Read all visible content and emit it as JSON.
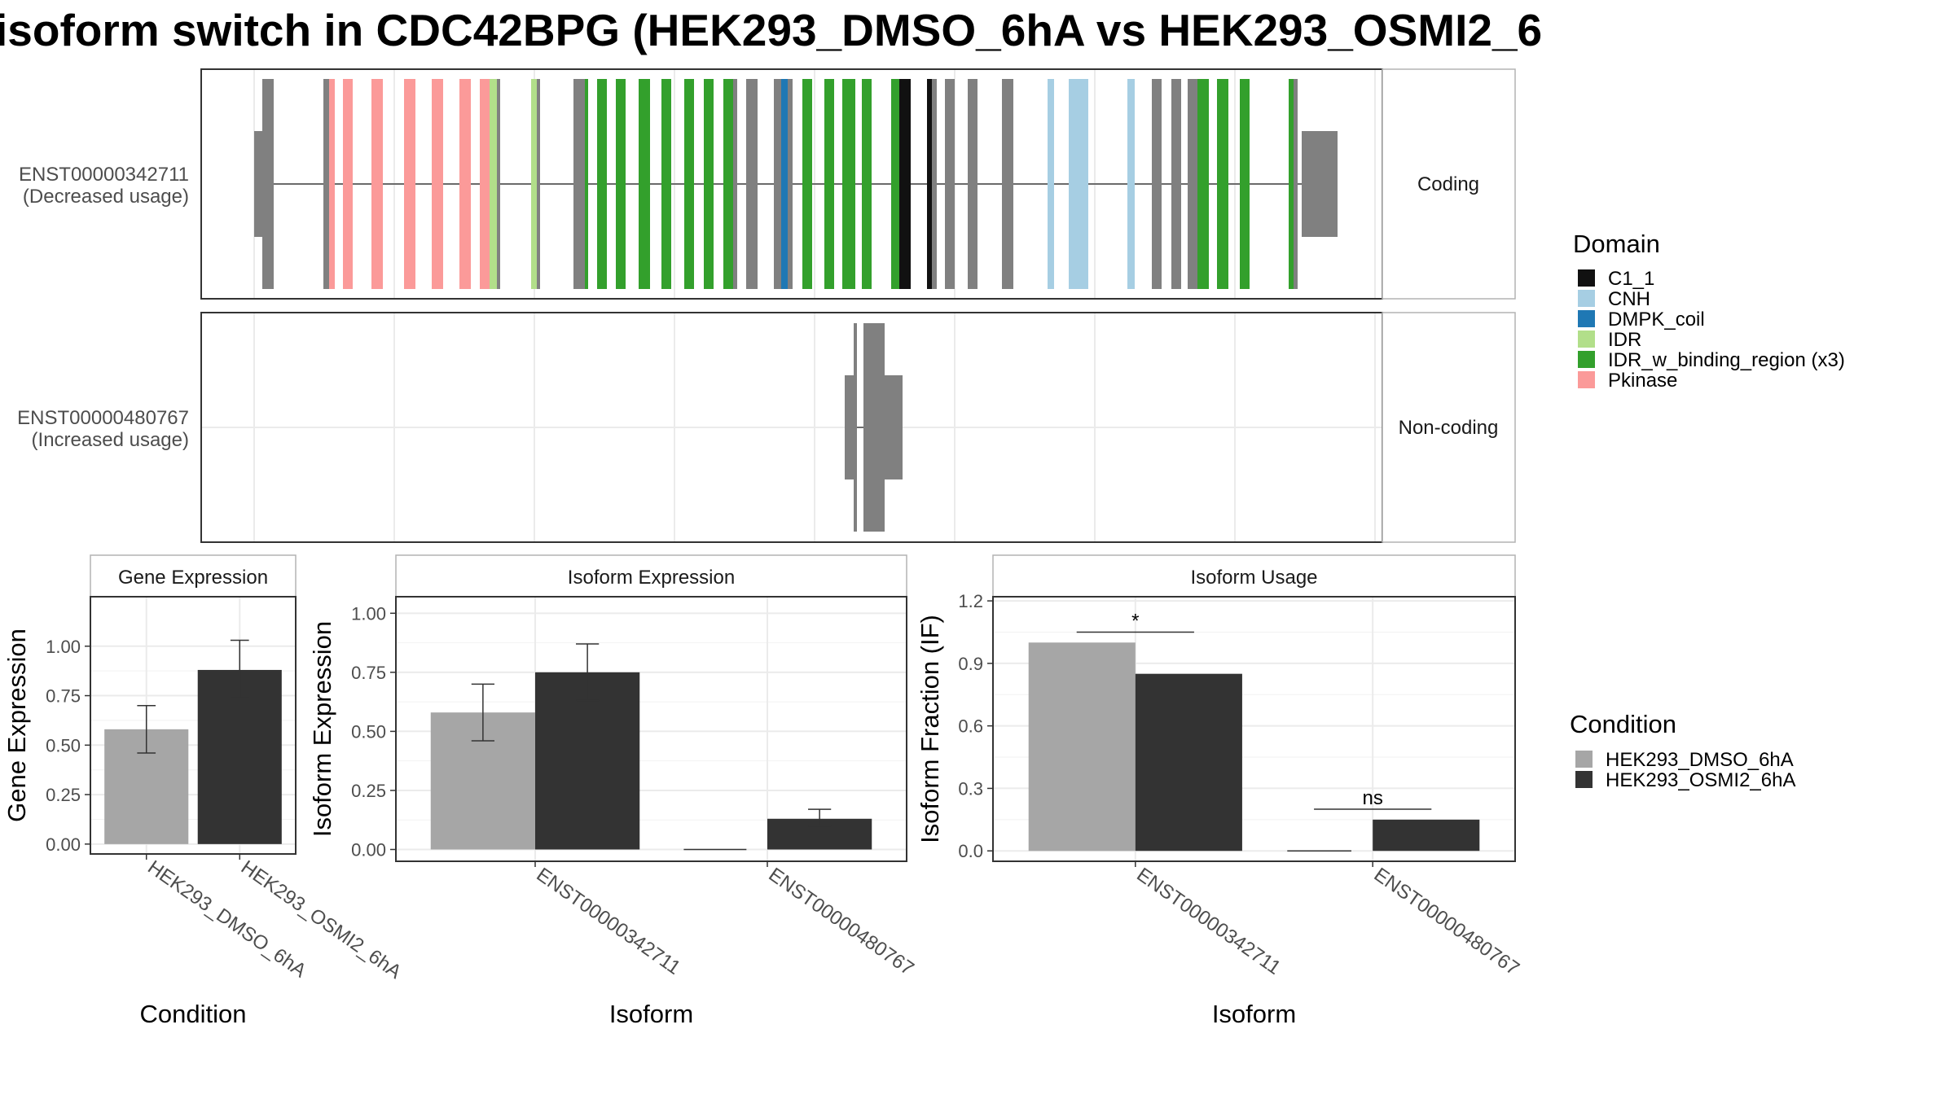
{
  "title": "isoform switch in CDC42BPG (HEK293_DMSO_6hA vs HEK293_OSMI2_6",
  "colors": {
    "dmso": "#a6a6a6",
    "osmi2": "#333333",
    "intron_gray": "#808080",
    "panel_border": "#333333",
    "strip_border": "#b3b3b3",
    "grid": "#ebebeb"
  },
  "structure": {
    "isoforms": [
      {
        "id": "ENST00000342711",
        "usage": "(Decreased usage)",
        "strip": "Coding"
      },
      {
        "id": "ENST00000480767",
        "usage": "(Increased usage)",
        "strip": "Non-coding"
      }
    ]
  },
  "domain_legend": {
    "title": "Domain",
    "items": [
      {
        "label": "C1_1",
        "color": "#111111"
      },
      {
        "label": "CNH",
        "color": "#a6cee3"
      },
      {
        "label": "DMPK_coil",
        "color": "#1f78b4"
      },
      {
        "label": "IDR",
        "color": "#b2df8a"
      },
      {
        "label": "IDR_w_binding_region (x3)",
        "color": "#33a02c"
      },
      {
        "label": "Pkinase",
        "color": "#fb9a99"
      }
    ]
  },
  "condition_legend": {
    "title": "Condition",
    "items": [
      {
        "label": "HEK293_DMSO_6hA",
        "color": "#a6a6a6"
      },
      {
        "label": "HEK293_OSMI2_6hA",
        "color": "#333333"
      }
    ]
  },
  "chart_data": [
    {
      "type": "bar",
      "strip": "Gene Expression",
      "categories": [
        "HEK293_DMSO_6hA",
        "HEK293_OSMI2_6hA"
      ],
      "values": [
        0.58,
        0.88
      ],
      "error_low": [
        0.46,
        0.74
      ],
      "error_high": [
        0.7,
        1.03
      ],
      "xlabel": "Condition",
      "ylabel": "Gene Expression",
      "ylim": [
        -0.05,
        1.25
      ],
      "yticks": [
        "0.00",
        "0.25",
        "0.50",
        "0.75",
        "1.00"
      ]
    },
    {
      "type": "bar",
      "strip": "Isoform Expression",
      "categories": [
        "ENST00000342711",
        "ENST00000480767"
      ],
      "series": [
        {
          "name": "HEK293_DMSO_6hA",
          "values": [
            0.58,
            0.0
          ],
          "error_low": [
            0.46,
            0.0
          ],
          "error_high": [
            0.7,
            0.0
          ]
        },
        {
          "name": "HEK293_OSMI2_6hA",
          "values": [
            0.75,
            0.13
          ],
          "error_low": [
            0.63,
            0.1
          ],
          "error_high": [
            0.87,
            0.17
          ]
        }
      ],
      "xlabel": "Isoform",
      "ylabel": "Isoform Expression",
      "ylim": [
        -0.05,
        1.07
      ],
      "yticks": [
        "0.00",
        "0.25",
        "0.50",
        "0.75",
        "1.00"
      ]
    },
    {
      "type": "bar",
      "strip": "Isoform Usage",
      "categories": [
        "ENST00000342711",
        "ENST00000480767"
      ],
      "series": [
        {
          "name": "HEK293_DMSO_6hA",
          "values": [
            1.0,
            0.0
          ]
        },
        {
          "name": "HEK293_OSMI2_6hA",
          "values": [
            0.85,
            0.15
          ]
        }
      ],
      "significance": [
        "*",
        "ns"
      ],
      "xlabel": "Isoform",
      "ylabel": "Isoform Fraction (IF)",
      "ylim": [
        -0.05,
        1.22
      ],
      "yticks": [
        "0.0",
        "0.3",
        "0.6",
        "0.9",
        "1.2"
      ]
    }
  ]
}
